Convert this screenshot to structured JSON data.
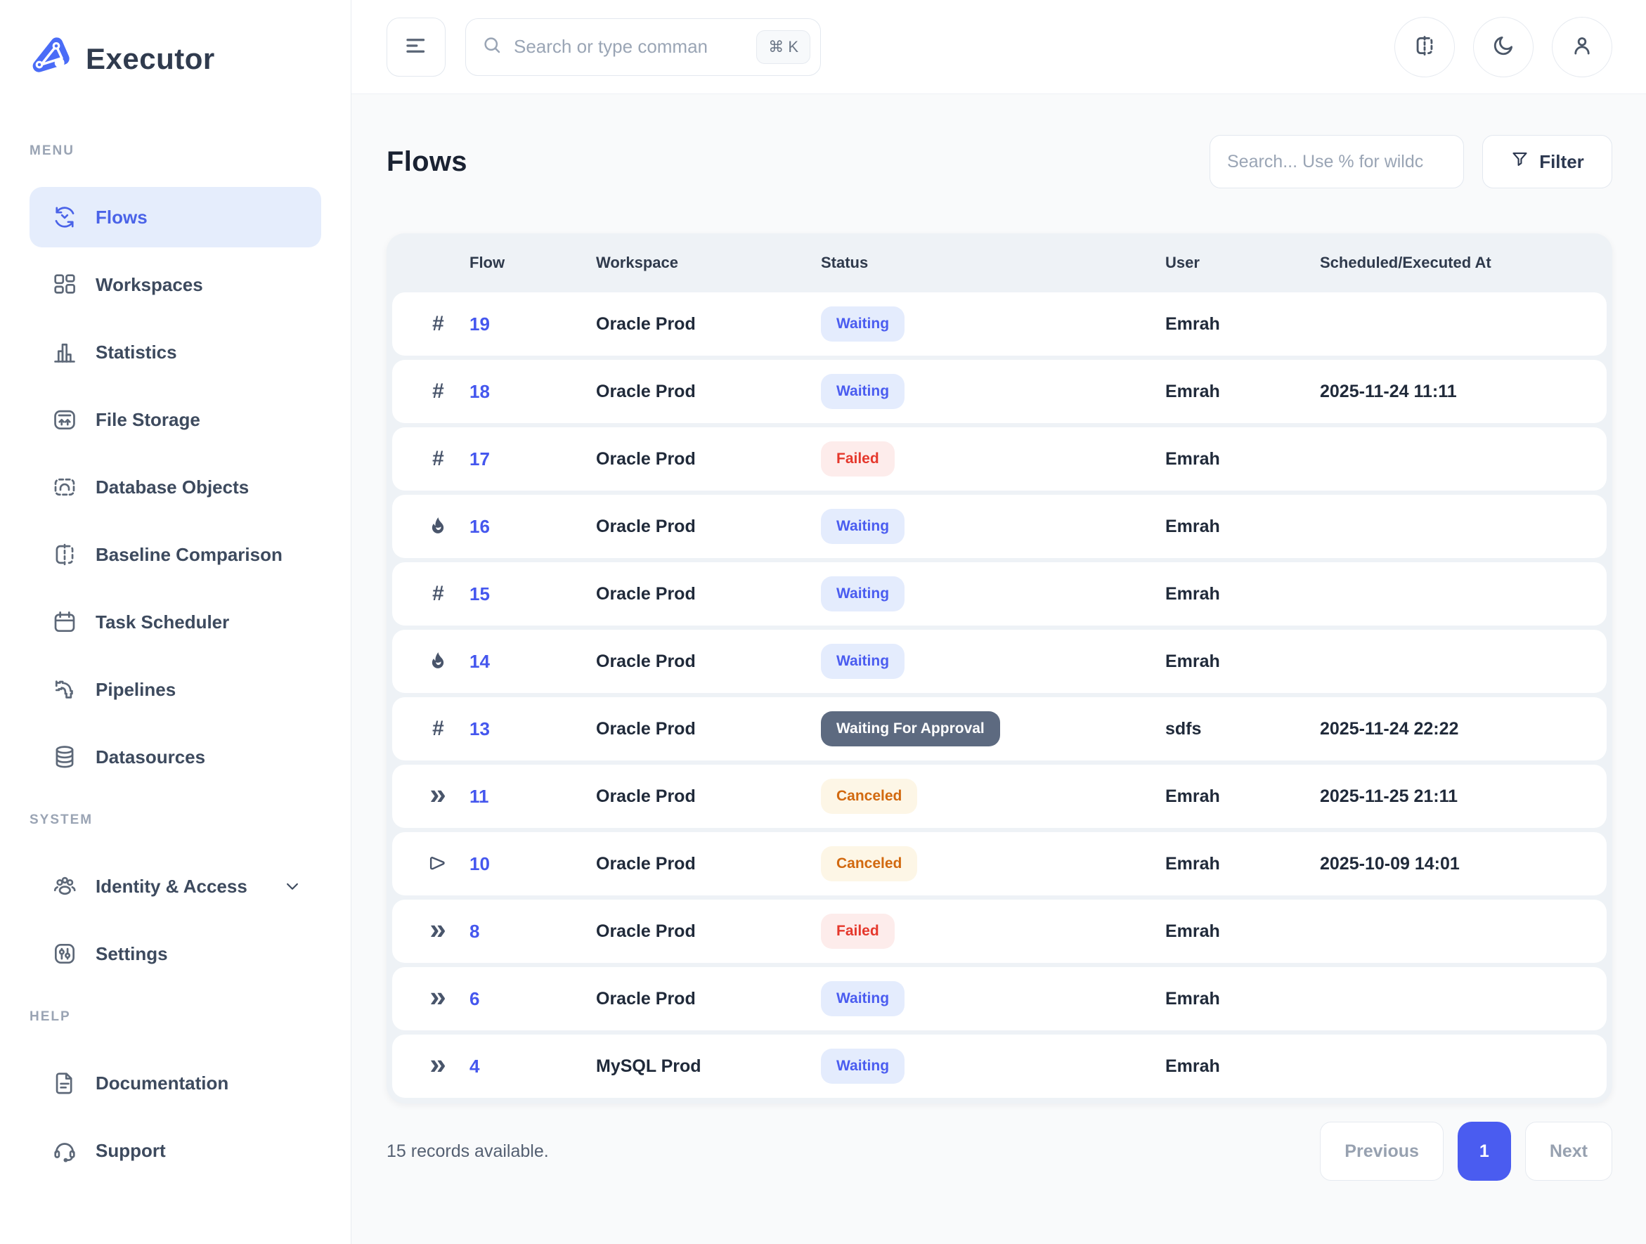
{
  "brand": {
    "name": "Executor"
  },
  "topbar": {
    "search_placeholder": "Search or type comman",
    "kbd": "⌘ K",
    "icons": [
      "menu-icon",
      "search-icon",
      "baseline-compare-icon",
      "moon-icon",
      "user-icon"
    ]
  },
  "sidebar": {
    "sections": [
      {
        "label": "MENU",
        "items": [
          {
            "label": "Flows",
            "icon": "flows-icon",
            "active": true
          },
          {
            "label": "Workspaces",
            "icon": "workspaces-icon"
          },
          {
            "label": "Statistics",
            "icon": "statistics-icon"
          },
          {
            "label": "File Storage",
            "icon": "file-storage-icon"
          },
          {
            "label": "Database Objects",
            "icon": "database-objects-icon"
          },
          {
            "label": "Baseline Comparison",
            "icon": "baseline-comparison-icon"
          },
          {
            "label": "Task Scheduler",
            "icon": "task-scheduler-icon"
          },
          {
            "label": "Pipelines",
            "icon": "pipelines-icon"
          },
          {
            "label": "Datasources",
            "icon": "datasources-icon"
          }
        ]
      },
      {
        "label": "SYSTEM",
        "items": [
          {
            "label": "Identity & Access",
            "icon": "identity-access-icon",
            "chevron": true
          },
          {
            "label": "Settings",
            "icon": "settings-icon"
          }
        ]
      },
      {
        "label": "HELP",
        "items": [
          {
            "label": "Documentation",
            "icon": "documentation-icon"
          },
          {
            "label": "Support",
            "icon": "support-icon"
          }
        ]
      }
    ]
  },
  "page": {
    "title": "Flows",
    "search_placeholder": "Search... Use % for wildc",
    "filter_label": "Filter"
  },
  "table": {
    "columns": [
      "Flow",
      "Workspace",
      "Status",
      "User",
      "Scheduled/Executed At"
    ],
    "rows": [
      {
        "icon": "hash-icon",
        "flow": "19",
        "workspace": "Oracle Prod",
        "status": "Waiting",
        "user": "Emrah",
        "scheduled": ""
      },
      {
        "icon": "hash-icon",
        "flow": "18",
        "workspace": "Oracle Prod",
        "status": "Waiting",
        "user": "Emrah",
        "scheduled": "2025-11-24 11:11"
      },
      {
        "icon": "hash-icon",
        "flow": "17",
        "workspace": "Oracle Prod",
        "status": "Failed",
        "user": "Emrah",
        "scheduled": ""
      },
      {
        "icon": "flame-icon",
        "flow": "16",
        "workspace": "Oracle Prod",
        "status": "Waiting",
        "user": "Emrah",
        "scheduled": ""
      },
      {
        "icon": "hash-icon",
        "flow": "15",
        "workspace": "Oracle Prod",
        "status": "Waiting",
        "user": "Emrah",
        "scheduled": ""
      },
      {
        "icon": "flame-icon",
        "flow": "14",
        "workspace": "Oracle Prod",
        "status": "Waiting",
        "user": "Emrah",
        "scheduled": ""
      },
      {
        "icon": "hash-icon",
        "flow": "13",
        "workspace": "Oracle Prod",
        "status": "Waiting For Approval",
        "user": "sdfs",
        "scheduled": "2025-11-24 22:22"
      },
      {
        "icon": "chevrons-icon",
        "flow": "11",
        "workspace": "Oracle Prod",
        "status": "Canceled",
        "user": "Emrah",
        "scheduled": "2025-11-25 21:11"
      },
      {
        "icon": "flag-icon",
        "flow": "10",
        "workspace": "Oracle Prod",
        "status": "Canceled",
        "user": "Emrah",
        "scheduled": "2025-10-09 14:01"
      },
      {
        "icon": "chevrons-icon",
        "flow": "8",
        "workspace": "Oracle Prod",
        "status": "Failed",
        "user": "Emrah",
        "scheduled": ""
      },
      {
        "icon": "chevrons-icon",
        "flow": "6",
        "workspace": "Oracle Prod",
        "status": "Waiting",
        "user": "Emrah",
        "scheduled": ""
      },
      {
        "icon": "chevrons-icon",
        "flow": "4",
        "workspace": "MySQL Prod",
        "status": "Waiting",
        "user": "Emrah",
        "scheduled": ""
      }
    ]
  },
  "footer": {
    "records_text": "15 records available.",
    "previous": "Previous",
    "page": "1",
    "next": "Next"
  },
  "colors": {
    "brand": "#4a6cf7",
    "link": "#4557ee",
    "active_item_bg": "#e5edfc",
    "active_item_fg": "#4a63e8",
    "pagination_active_bg": "#4a5cf0",
    "status": {
      "Waiting": {
        "bg": "#e4ecfd",
        "fg": "#4a5cf0"
      },
      "Failed": {
        "bg": "#fdeceb",
        "fg": "#e5382c"
      },
      "Canceled": {
        "bg": "#fdf6e6",
        "fg": "#d2690f"
      },
      "Waiting For Approval": {
        "bg": "#5d6a80",
        "fg": "#ffffff"
      }
    }
  }
}
